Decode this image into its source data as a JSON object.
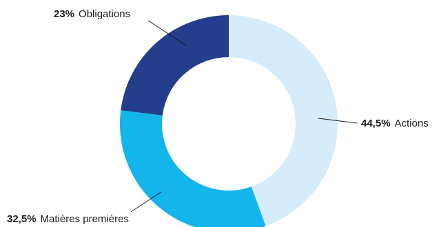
{
  "chart_data": {
    "type": "donut",
    "title": "",
    "legend": "none",
    "series": [
      {
        "label": "Actions",
        "percent_label": "44,5%",
        "value": 44.5,
        "color": "#d6ecfa"
      },
      {
        "label": "Matières premières",
        "percent_label": "32,5%",
        "value": 32.5,
        "color": "#13b5ea"
      },
      {
        "label": "Obligations",
        "percent_label": "23%",
        "value": 23,
        "color": "#233e8b"
      }
    ]
  }
}
